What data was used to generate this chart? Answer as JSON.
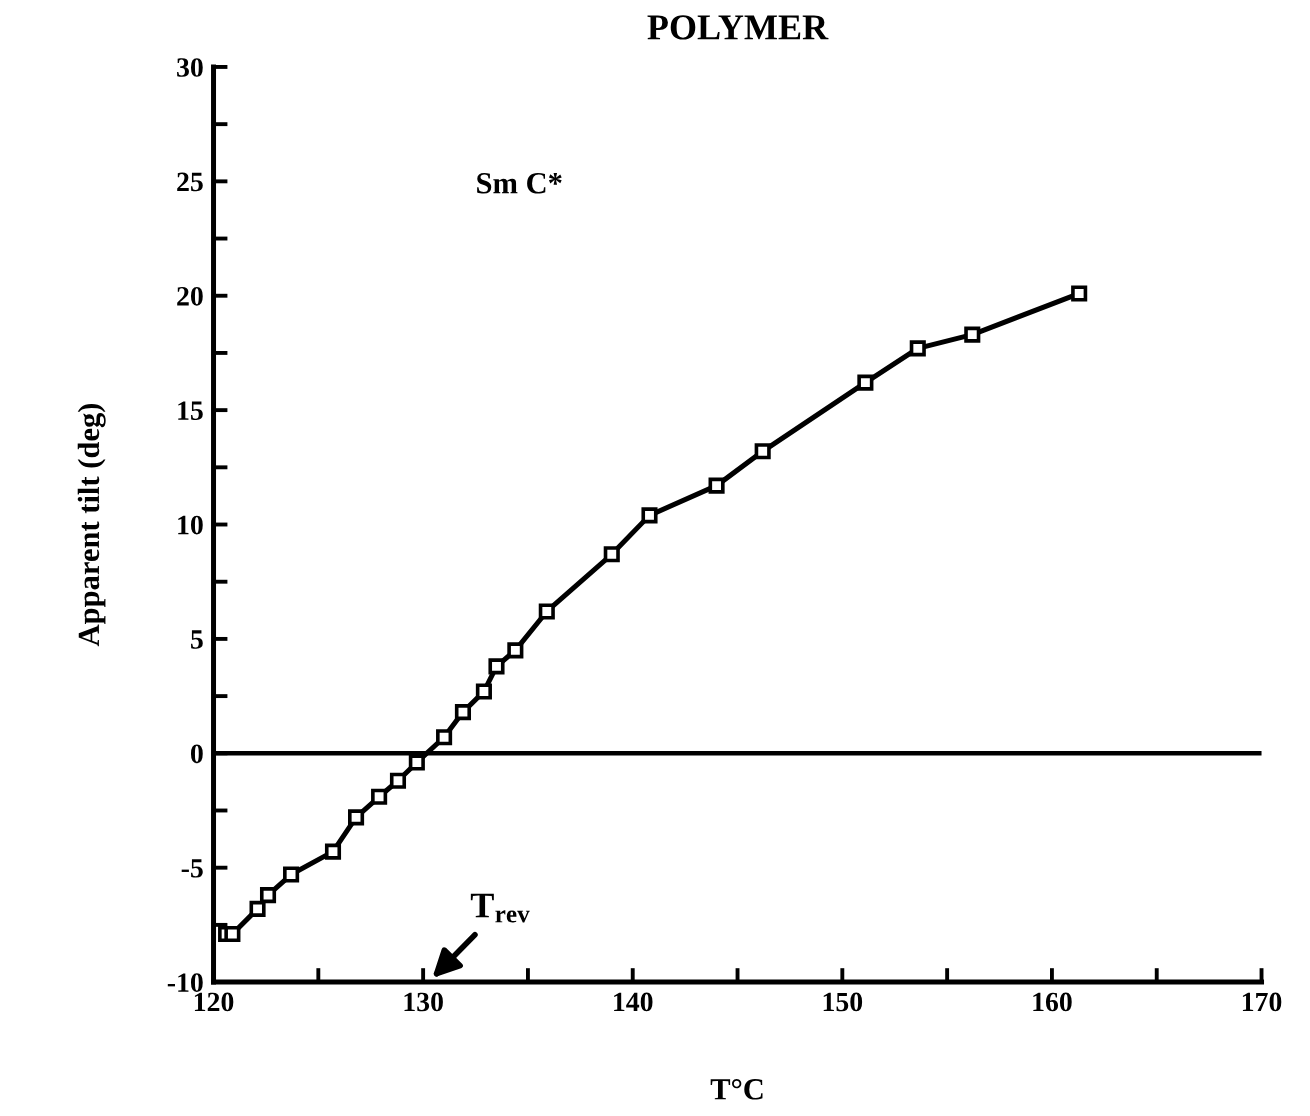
{
  "chart_data": {
    "type": "line",
    "title": "POLYMER",
    "xlabel": "T°C",
    "ylabel": "Apparent tilt (deg)",
    "x": [
      120.6,
      120.9,
      122.1,
      122.6,
      123.7,
      125.7,
      126.8,
      127.9,
      128.8,
      129.7,
      131.0,
      131.9,
      132.9,
      133.5,
      134.4,
      135.9,
      139.0,
      140.8,
      144.0,
      146.2,
      151.1,
      153.6,
      156.2,
      161.3
    ],
    "series": [
      {
        "color": "#000000",
        "values": [
          -7.9,
          -7.9,
          -6.8,
          -6.2,
          -5.3,
          -4.3,
          -2.8,
          -1.9,
          -1.2,
          -0.4,
          0.7,
          1.8,
          2.7,
          3.8,
          4.5,
          6.2,
          8.7,
          10.4,
          11.7,
          13.2,
          16.2,
          17.7,
          18.3,
          20.1
        ]
      }
    ],
    "xlim": [
      120,
      170
    ],
    "ylim": [
      -10,
      30
    ],
    "xticks": [
      120,
      {
        "value": 125,
        "label": null
      },
      130,
      {
        "value": 135,
        "label": null
      },
      140,
      {
        "value": 145,
        "label": null
      },
      150,
      {
        "value": 155,
        "label": null
      },
      160,
      {
        "value": 165,
        "label": null
      },
      170
    ],
    "yticks": [
      -10,
      {
        "value": -7.5,
        "label": null
      },
      -5,
      {
        "value": -2.5,
        "label": null
      },
      0,
      {
        "value": 2.5,
        "label": null
      },
      5,
      {
        "value": 7.5,
        "label": null
      },
      10,
      {
        "value": 12.5,
        "label": null
      },
      15,
      {
        "value": 17.5,
        "label": null
      },
      20,
      {
        "value": 22.5,
        "label": null
      },
      25,
      {
        "value": 27.5,
        "label": null
      },
      30
    ],
    "ref_lines": [
      {
        "axis": "y",
        "value": 0,
        "color": "#000000"
      }
    ],
    "annotations": [
      "Sm C*",
      "T$_{rev}$"
    ],
    "marker": "square",
    "line_style": "solid",
    "grid": false,
    "legend": false
  }
}
